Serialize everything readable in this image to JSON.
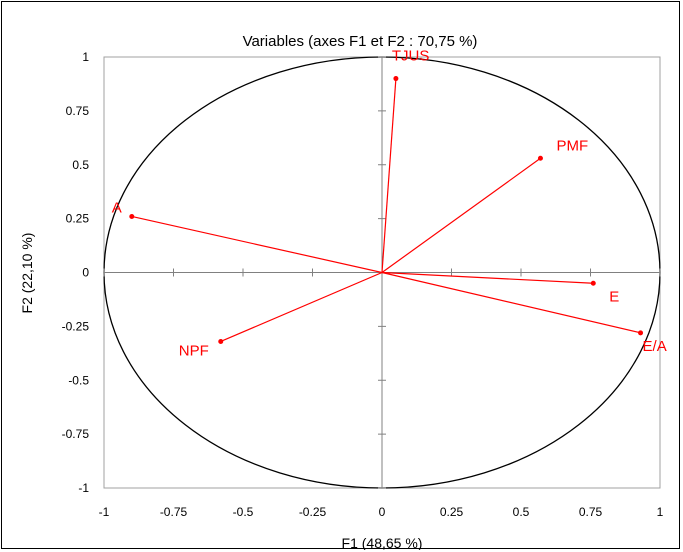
{
  "chart_data": {
    "type": "scatter",
    "title": "Variables (axes F1 et F2 : 70,75 %)",
    "xlabel": "F1 (48,65 %)",
    "ylabel": "F2 (22,10 %)",
    "xlim": [
      -1,
      1
    ],
    "ylim": [
      -1,
      1
    ],
    "xticks": [
      "-1",
      "-0.75",
      "-0.5",
      "-0.25",
      "0",
      "0.25",
      "0.5",
      "0.75",
      "1"
    ],
    "yticks": [
      "1",
      "0.75",
      "0.5",
      "0.25",
      "0",
      "-0.25",
      "-0.5",
      "-0.75",
      "-1"
    ],
    "grid": false,
    "legend": false,
    "correlation_circle": true,
    "vector_color": "#ff0000",
    "circle_color": "#000000",
    "variables": [
      {
        "label": "TJUS",
        "x": 0.05,
        "y": 0.9
      },
      {
        "label": "PMF",
        "x": 0.57,
        "y": 0.53
      },
      {
        "label": "A",
        "x": -0.9,
        "y": 0.26
      },
      {
        "label": "E",
        "x": 0.76,
        "y": -0.05
      },
      {
        "label": "E/A",
        "x": 0.93,
        "y": -0.28
      },
      {
        "label": "NPF",
        "x": -0.58,
        "y": -0.32
      }
    ]
  }
}
